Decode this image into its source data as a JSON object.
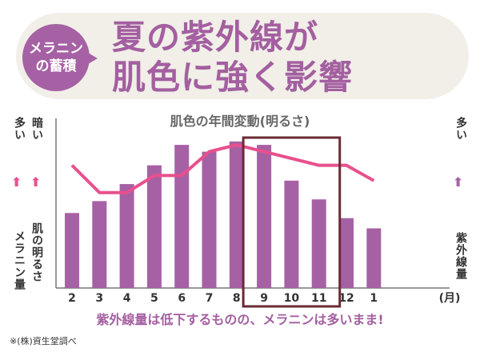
{
  "badge": {
    "line1": "メラニン",
    "line2": "の蓄積"
  },
  "headline": {
    "line1": "夏の紫外線が",
    "line2": "肌色に強く影響"
  },
  "left_axis": {
    "melanin_top": "多い",
    "brightness_top": "暗い",
    "melanin_label": "メラニン量",
    "brightness_label": "肌の明るさ"
  },
  "right_axis": {
    "top": "多い",
    "label": "紫外線量"
  },
  "colors": {
    "bar": "#a661a4",
    "line": "#e8508e",
    "box": "#6b2a35",
    "title": "#a35fa0"
  },
  "chart_data": {
    "type": "bar",
    "title": "肌色の年間変動(明るさ)",
    "categories": [
      "2",
      "3",
      "4",
      "5",
      "6",
      "7",
      "8",
      "9",
      "10",
      "11",
      "12",
      "1"
    ],
    "x_unit": "(月)",
    "series": [
      {
        "name": "紫外線量",
        "type": "bar",
        "values": [
          44,
          51,
          61,
          72,
          84,
          80,
          86,
          84,
          63,
          52,
          41,
          35
        ]
      },
      {
        "name": "肌の明るさ(暗さ)",
        "type": "line",
        "values": [
          72,
          56,
          56,
          66,
          66,
          80,
          84,
          80,
          76,
          72,
          72,
          63
        ]
      }
    ],
    "ylim": [
      0,
      100
    ],
    "highlight": [
      "9",
      "11"
    ]
  },
  "caption": "紫外線量は低下するものの、メラニンは多いまま!",
  "source": "※(株)資生堂調べ"
}
